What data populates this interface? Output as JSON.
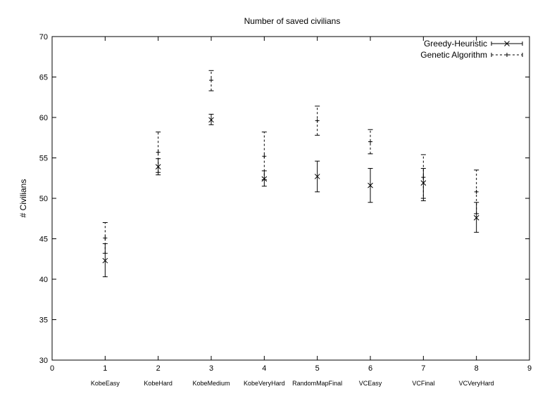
{
  "chart_data": {
    "type": "scatter",
    "title": "Number of saved civilians",
    "xlabel": "",
    "ylabel": "# Civilians",
    "xlim": [
      0,
      9
    ],
    "ylim": [
      30,
      70
    ],
    "xticks": [
      "0",
      "1",
      "2",
      "3",
      "4",
      "5",
      "6",
      "7",
      "8",
      "9"
    ],
    "yticks": [
      "30",
      "35",
      "40",
      "45",
      "50",
      "55",
      "60",
      "65",
      "70"
    ],
    "categories": [
      {
        "x": 1,
        "label": "KobeEasy"
      },
      {
        "x": 2,
        "label": "KobeHard"
      },
      {
        "x": 3,
        "label": "KobeMedium"
      },
      {
        "x": 4,
        "label": "KobeVeryHard"
      },
      {
        "x": 5,
        "label": "RandomMapFinal"
      },
      {
        "x": 6,
        "label": "VCEasy"
      },
      {
        "x": 7,
        "label": "VCFinal"
      },
      {
        "x": 8,
        "label": "VCVeryHard"
      }
    ],
    "grid": false,
    "legend_position": "top-right",
    "series": [
      {
        "name": "Greedy-Heuristic",
        "marker": "x",
        "line": "solid",
        "points": [
          {
            "x": 1,
            "y": 42.3,
            "low": 40.3,
            "high": 44.4
          },
          {
            "x": 2,
            "y": 53.9,
            "low": 52.9,
            "high": 54.9
          },
          {
            "x": 3,
            "y": 59.7,
            "low": 59.1,
            "high": 60.4
          },
          {
            "x": 4,
            "y": 52.4,
            "low": 51.5,
            "high": 53.4
          },
          {
            "x": 5,
            "y": 52.7,
            "low": 50.8,
            "high": 54.6
          },
          {
            "x": 6,
            "y": 51.6,
            "low": 49.5,
            "high": 53.7
          },
          {
            "x": 7,
            "y": 51.9,
            "low": 50.0,
            "high": 53.7
          },
          {
            "x": 8,
            "y": 47.6,
            "low": 45.8,
            "high": 49.5
          }
        ]
      },
      {
        "name": "Genetic Algorithm",
        "marker": "+",
        "line": "dashed",
        "points": [
          {
            "x": 1,
            "y": 45.1,
            "low": 43.2,
            "high": 47.0
          },
          {
            "x": 2,
            "y": 55.7,
            "low": 53.2,
            "high": 58.2
          },
          {
            "x": 3,
            "y": 64.6,
            "low": 63.3,
            "high": 65.8
          },
          {
            "x": 4,
            "y": 55.2,
            "low": 52.3,
            "high": 58.2
          },
          {
            "x": 5,
            "y": 59.6,
            "low": 57.8,
            "high": 61.4
          },
          {
            "x": 6,
            "y": 57.0,
            "low": 55.5,
            "high": 58.5
          },
          {
            "x": 7,
            "y": 52.6,
            "low": 49.7,
            "high": 55.4
          },
          {
            "x": 8,
            "y": 50.8,
            "low": 48.1,
            "high": 53.5
          }
        ]
      }
    ]
  }
}
